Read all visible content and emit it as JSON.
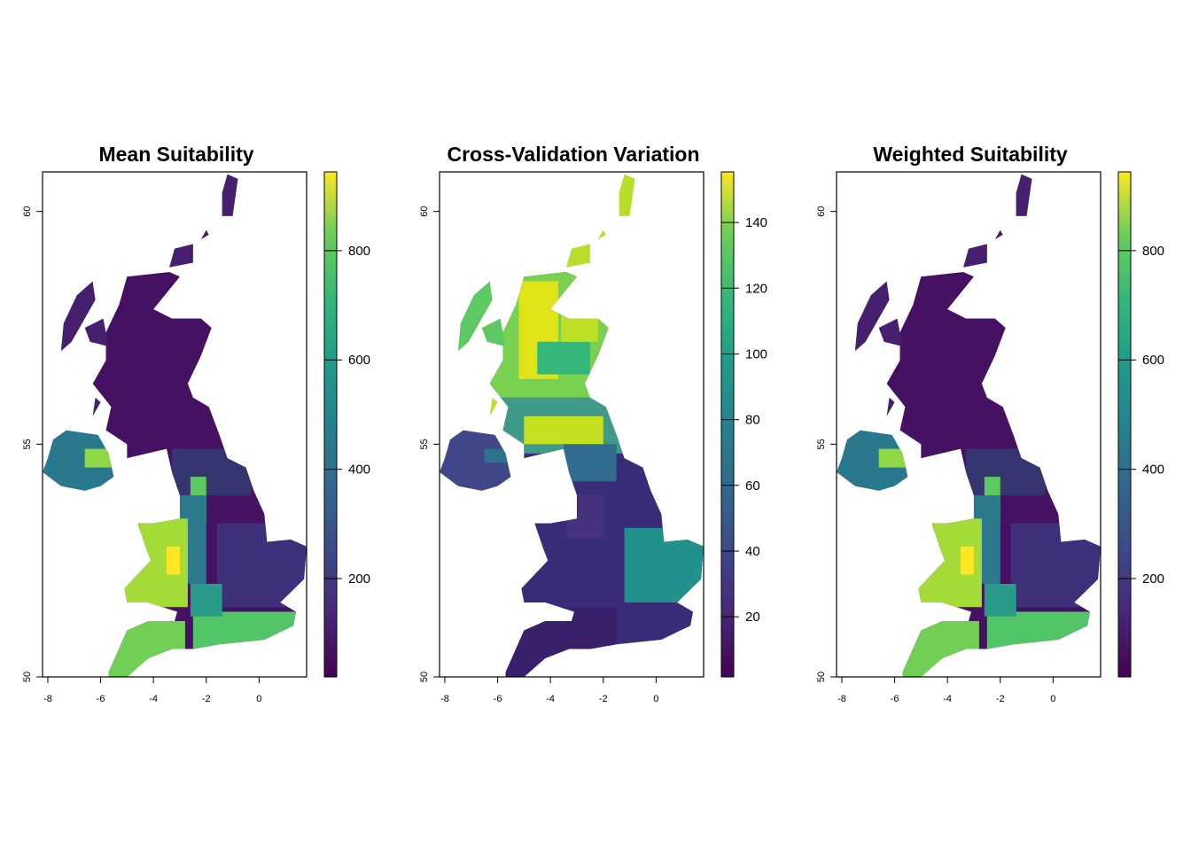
{
  "chart_data": [
    {
      "type": "raster",
      "title": "Mean Suitability",
      "xlim": [
        -8.2,
        1.8
      ],
      "ylim": [
        50,
        60.85
      ],
      "xticks": [
        -8,
        -6,
        -4,
        -2,
        0
      ],
      "yticks": [
        50,
        55,
        60
      ],
      "colormap": "viridis",
      "zlim": [
        20,
        944
      ],
      "zticks": [
        200,
        400,
        600,
        800
      ]
    },
    {
      "type": "raster",
      "title": "Cross-Validation Variation",
      "xlim": [
        -8.2,
        1.8
      ],
      "ylim": [
        50,
        60.85
      ],
      "xticks": [
        -8,
        -6,
        -4,
        -2,
        0
      ],
      "yticks": [
        50,
        55,
        60
      ],
      "colormap": "viridis",
      "zlim": [
        1.7,
        155.4
      ],
      "zticks": [
        20,
        40,
        60,
        80,
        100,
        120,
        140
      ]
    },
    {
      "type": "raster",
      "title": "Weighted Suitability",
      "xlim": [
        -8.2,
        1.8
      ],
      "ylim": [
        50,
        60.85
      ],
      "xticks": [
        -8,
        -6,
        -4,
        -2,
        0
      ],
      "yticks": [
        50,
        55,
        60
      ],
      "colormap": "viridis",
      "zlim": [
        20,
        944
      ],
      "zticks": [
        200,
        400,
        600,
        800
      ]
    }
  ]
}
